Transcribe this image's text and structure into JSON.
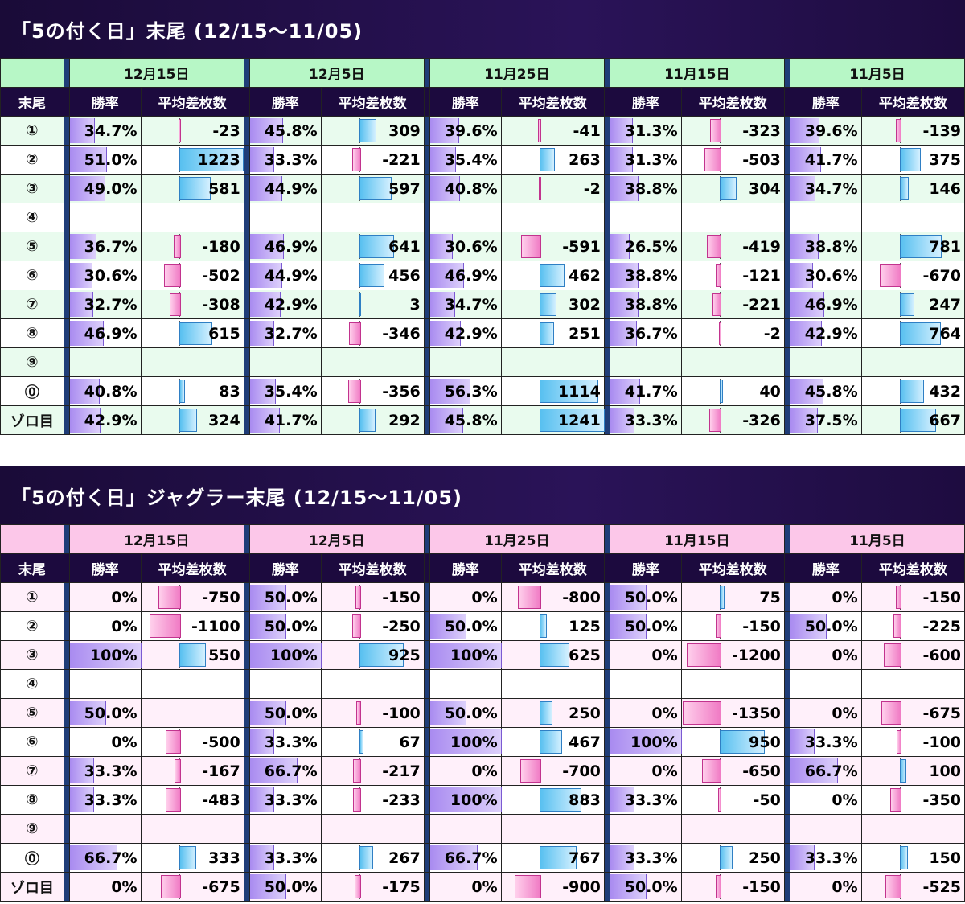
{
  "colors": {
    "title_bg": "#1c0a3e",
    "sec1_header": "#b7f7c6",
    "sec2_header": "#fcc7e9",
    "win_bar": "#a98bf0",
    "pos_bar": "#58c0f0",
    "neg_bar": "#f07ac4"
  },
  "col_headers": {
    "tail": "末尾",
    "win": "勝率",
    "diff": "平均差枚数"
  },
  "sections": [
    {
      "title": "「5の付く日」末尾 (12/15〜11/05)",
      "dates": [
        "12月15日",
        "12月5日",
        "11月25日",
        "11月15日",
        "11月5日"
      ],
      "max_abs": 1250,
      "rows": [
        {
          "label": "①",
          "cells": [
            [
              "34.7%",
              34.7,
              "-23",
              -23
            ],
            [
              "45.8%",
              45.8,
              "309",
              309
            ],
            [
              "39.6%",
              39.6,
              "-41",
              -41
            ],
            [
              "31.3%",
              31.3,
              "-323",
              -323
            ],
            [
              "39.6%",
              39.6,
              "-139",
              -139
            ]
          ]
        },
        {
          "label": "②",
          "cells": [
            [
              "51.0%",
              51.0,
              "1223",
              1223
            ],
            [
              "33.3%",
              33.3,
              "-221",
              -221
            ],
            [
              "35.4%",
              35.4,
              "263",
              263
            ],
            [
              "31.3%",
              31.3,
              "-503",
              -503
            ],
            [
              "41.7%",
              41.7,
              "375",
              375
            ]
          ]
        },
        {
          "label": "③",
          "cells": [
            [
              "49.0%",
              49.0,
              "581",
              581
            ],
            [
              "44.9%",
              44.9,
              "597",
              597
            ],
            [
              "40.8%",
              40.8,
              "-2",
              -2
            ],
            [
              "38.8%",
              38.8,
              "304",
              304
            ],
            [
              "34.7%",
              34.7,
              "146",
              146
            ]
          ]
        },
        {
          "label": "④",
          "cells": [
            [
              "",
              null,
              "",
              null
            ],
            [
              "",
              null,
              "",
              null
            ],
            [
              "",
              null,
              "",
              null
            ],
            [
              "",
              null,
              "",
              null
            ],
            [
              "",
              null,
              "",
              null
            ]
          ]
        },
        {
          "label": "⑤",
          "cells": [
            [
              "36.7%",
              36.7,
              "-180",
              -180
            ],
            [
              "46.9%",
              46.9,
              "641",
              641
            ],
            [
              "30.6%",
              30.6,
              "-591",
              -591
            ],
            [
              "26.5%",
              26.5,
              "-419",
              -419
            ],
            [
              "38.8%",
              38.8,
              "781",
              781
            ]
          ]
        },
        {
          "label": "⑥",
          "cells": [
            [
              "30.6%",
              30.6,
              "-502",
              -502
            ],
            [
              "44.9%",
              44.9,
              "456",
              456
            ],
            [
              "46.9%",
              46.9,
              "462",
              462
            ],
            [
              "38.8%",
              38.8,
              "-121",
              -121
            ],
            [
              "30.6%",
              30.6,
              "-670",
              -670
            ]
          ]
        },
        {
          "label": "⑦",
          "cells": [
            [
              "32.7%",
              32.7,
              "-308",
              -308
            ],
            [
              "42.9%",
              42.9,
              "3",
              3
            ],
            [
              "34.7%",
              34.7,
              "302",
              302
            ],
            [
              "38.8%",
              38.8,
              "-221",
              -221
            ],
            [
              "46.9%",
              46.9,
              "247",
              247
            ]
          ]
        },
        {
          "label": "⑧",
          "cells": [
            [
              "46.9%",
              46.9,
              "615",
              615
            ],
            [
              "32.7%",
              32.7,
              "-346",
              -346
            ],
            [
              "42.9%",
              42.9,
              "251",
              251
            ],
            [
              "36.7%",
              36.7,
              "-2",
              -2
            ],
            [
              "42.9%",
              42.9,
              "764",
              764
            ]
          ]
        },
        {
          "label": "⑨",
          "cells": [
            [
              "",
              null,
              "",
              null
            ],
            [
              "",
              null,
              "",
              null
            ],
            [
              "",
              null,
              "",
              null
            ],
            [
              "",
              null,
              "",
              null
            ],
            [
              "",
              null,
              "",
              null
            ]
          ]
        },
        {
          "label": "⓪",
          "cells": [
            [
              "40.8%",
              40.8,
              "83",
              83
            ],
            [
              "35.4%",
              35.4,
              "-356",
              -356
            ],
            [
              "56.3%",
              56.3,
              "1114",
              1114
            ],
            [
              "41.7%",
              41.7,
              "40",
              40
            ],
            [
              "45.8%",
              45.8,
              "432",
              432
            ]
          ]
        },
        {
          "label": "ゾロ目",
          "cells": [
            [
              "42.9%",
              42.9,
              "324",
              324
            ],
            [
              "41.7%",
              41.7,
              "292",
              292
            ],
            [
              "45.8%",
              45.8,
              "1241",
              1241
            ],
            [
              "33.3%",
              33.3,
              "-326",
              -326
            ],
            [
              "37.5%",
              37.5,
              "667",
              667
            ]
          ]
        }
      ]
    },
    {
      "title": "「5の付く日」ジャグラー末尾 (12/15〜11/05)",
      "dates": [
        "12月15日",
        "12月5日",
        "11月25日",
        "11月15日",
        "11月5日"
      ],
      "max_abs": 1400,
      "rows": [
        {
          "label": "①",
          "cells": [
            [
              "0%",
              0,
              "-750",
              -750
            ],
            [
              "50.0%",
              50.0,
              "-150",
              -150
            ],
            [
              "0%",
              0,
              "-800",
              -800
            ],
            [
              "50.0%",
              50.0,
              "75",
              75
            ],
            [
              "0%",
              0,
              "-150",
              -150
            ]
          ]
        },
        {
          "label": "②",
          "cells": [
            [
              "0%",
              0,
              "-1100",
              -1100
            ],
            [
              "50.0%",
              50.0,
              "-250",
              -250
            ],
            [
              "50.0%",
              50.0,
              "125",
              125
            ],
            [
              "50.0%",
              50.0,
              "-150",
              -150
            ],
            [
              "50.0%",
              50.0,
              "-225",
              -225
            ]
          ]
        },
        {
          "label": "③",
          "cells": [
            [
              "100%",
              100,
              "550",
              550
            ],
            [
              "100%",
              100,
              "925",
              925
            ],
            [
              "100%",
              100,
              "625",
              625
            ],
            [
              "0%",
              0,
              "-1200",
              -1200
            ],
            [
              "0%",
              0,
              "-600",
              -600
            ]
          ]
        },
        {
          "label": "④",
          "cells": [
            [
              "",
              null,
              "",
              null
            ],
            [
              "",
              null,
              "",
              null
            ],
            [
              "",
              null,
              "",
              null
            ],
            [
              "",
              null,
              "",
              null
            ],
            [
              "",
              null,
              "",
              null
            ]
          ]
        },
        {
          "label": "⑤",
          "cells": [
            [
              "50.0%",
              50.0,
              "",
              null
            ],
            [
              "50.0%",
              50.0,
              "-100",
              -100
            ],
            [
              "50.0%",
              50.0,
              "250",
              250
            ],
            [
              "0%",
              0,
              "-1350",
              -1350
            ],
            [
              "0%",
              0,
              "-675",
              -675
            ]
          ]
        },
        {
          "label": "⑥",
          "cells": [
            [
              "0%",
              0,
              "-500",
              -500
            ],
            [
              "33.3%",
              33.3,
              "67",
              67
            ],
            [
              "100%",
              100,
              "467",
              467
            ],
            [
              "100%",
              100,
              "950",
              950
            ],
            [
              "33.3%",
              33.3,
              "-100",
              -100
            ]
          ]
        },
        {
          "label": "⑦",
          "cells": [
            [
              "33.3%",
              33.3,
              "-167",
              -167
            ],
            [
              "66.7%",
              66.7,
              "-217",
              -217
            ],
            [
              "0%",
              0,
              "-700",
              -700
            ],
            [
              "0%",
              0,
              "-650",
              -650
            ],
            [
              "66.7%",
              66.7,
              "100",
              100
            ]
          ]
        },
        {
          "label": "⑧",
          "cells": [
            [
              "33.3%",
              33.3,
              "-483",
              -483
            ],
            [
              "33.3%",
              33.3,
              "-233",
              -233
            ],
            [
              "100%",
              100,
              "883",
              883
            ],
            [
              "33.3%",
              33.3,
              "-50",
              -50
            ],
            [
              "0%",
              0,
              "-350",
              -350
            ]
          ]
        },
        {
          "label": "⑨",
          "cells": [
            [
              "",
              null,
              "",
              null
            ],
            [
              "",
              null,
              "",
              null
            ],
            [
              "",
              null,
              "",
              null
            ],
            [
              "",
              null,
              "",
              null
            ],
            [
              "",
              null,
              "",
              null
            ]
          ]
        },
        {
          "label": "⓪",
          "cells": [
            [
              "66.7%",
              66.7,
              "333",
              333
            ],
            [
              "33.3%",
              33.3,
              "267",
              267
            ],
            [
              "66.7%",
              66.7,
              "767",
              767
            ],
            [
              "33.3%",
              33.3,
              "250",
              250
            ],
            [
              "33.3%",
              33.3,
              "150",
              150
            ]
          ]
        },
        {
          "label": "ゾロ目",
          "cells": [
            [
              "0%",
              0,
              "-675",
              -675
            ],
            [
              "50.0%",
              50.0,
              "-175",
              -175
            ],
            [
              "0%",
              0,
              "-900",
              -900
            ],
            [
              "50.0%",
              50.0,
              "-150",
              -150
            ],
            [
              "0%",
              0,
              "-525",
              -525
            ]
          ]
        }
      ]
    }
  ]
}
